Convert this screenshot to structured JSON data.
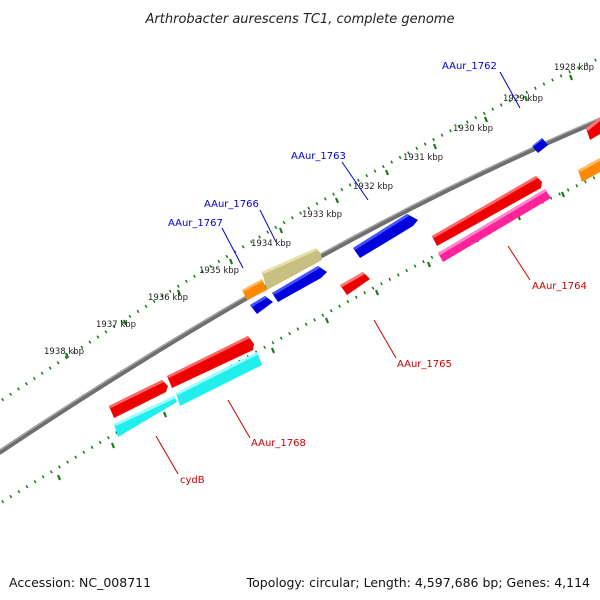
{
  "title": "Arthrobacter aurescens TC1, complete genome",
  "footer": {
    "accession": "Accession: NC_008711",
    "summary": "Topology: circular; Length: 4,597,686 bp; Genes: 4,114"
  },
  "kbp_labels": [
    "1928 kbp",
    "1929 kbp",
    "1930 kbp",
    "1931 kbp",
    "1932 kbp",
    "1933 kbp",
    "1934 kbp",
    "1935 kbp",
    "1936 kbp",
    "1937 kbp",
    "1938 kbp"
  ],
  "gene_labels": {
    "aaur_1762": "AAur_1762",
    "aaur_1763": "AAur_1763",
    "aaur_1766": "AAur_1766",
    "aaur_1767": "AAur_1767",
    "aaur_1764": "AAur_1764",
    "aaur_1765": "AAur_1765",
    "aaur_1768": "AAur_1768",
    "cydb": "cydB"
  },
  "colors": {
    "backbone": "#808080",
    "tick": "#1a7a1a",
    "forward_label": "#0000cc",
    "reverse_label": "#cc0000",
    "red": "#ee0000",
    "blue": "#0000dd",
    "orange": "#ff8800",
    "khaki": "#c8c080",
    "magenta": "#ff2299",
    "cyan": "#22eeee"
  }
}
